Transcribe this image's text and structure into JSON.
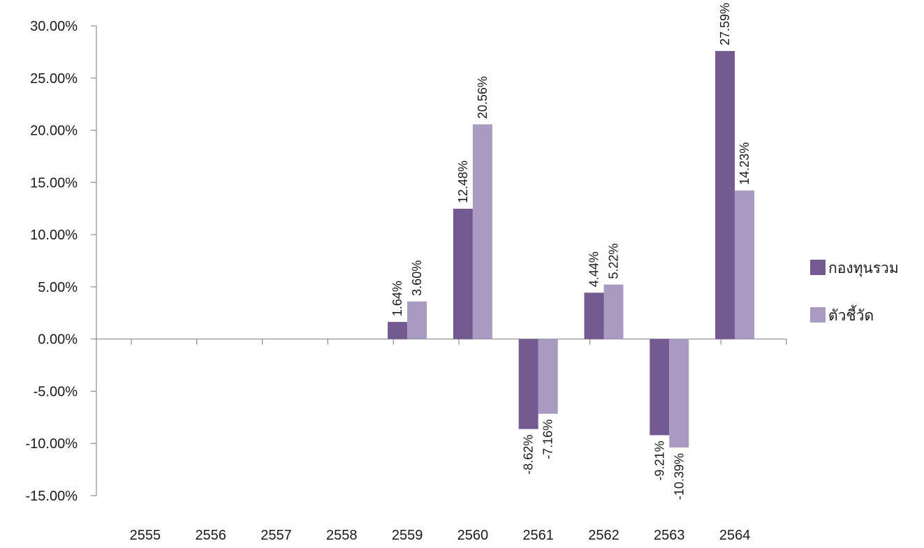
{
  "chart_data": {
    "type": "bar",
    "categories": [
      "2555",
      "2556",
      "2557",
      "2558",
      "2559",
      "2560",
      "2561",
      "2562",
      "2563",
      "2564"
    ],
    "series": [
      {
        "name": "กองทุนรวม",
        "color": "#735a91",
        "values": [
          null,
          null,
          null,
          null,
          1.64,
          12.48,
          -8.62,
          4.44,
          -9.21,
          27.59
        ],
        "labels": [
          "",
          "",
          "",
          "",
          "1.64%",
          "12.48%",
          "-8.62%",
          "4.44%",
          "-9.21%",
          "27.59%"
        ]
      },
      {
        "name": "ตัวชี้วัด",
        "color": "#a89ac0",
        "values": [
          null,
          null,
          null,
          null,
          3.6,
          20.56,
          -7.16,
          5.22,
          -10.39,
          14.23
        ],
        "labels": [
          "",
          "",
          "",
          "",
          "3.60%",
          "20.56%",
          "-7.16%",
          "5.22%",
          "-10.39%",
          "14.23%"
        ]
      }
    ],
    "ylim": [
      -15,
      30
    ],
    "y_ticks": [
      30,
      25,
      20,
      15,
      10,
      5,
      0,
      -5,
      -10,
      -15
    ],
    "y_tick_labels": [
      "30.00%",
      "25.00%",
      "20.00%",
      "15.00%",
      "10.00%",
      "5.00%",
      "0.00%",
      "-5.00%",
      "-10.00%",
      "-15.00%"
    ],
    "title": "",
    "xlabel": "",
    "ylabel": "",
    "grid": false,
    "legend_position": "right",
    "data_label_orientation": "vertical"
  }
}
